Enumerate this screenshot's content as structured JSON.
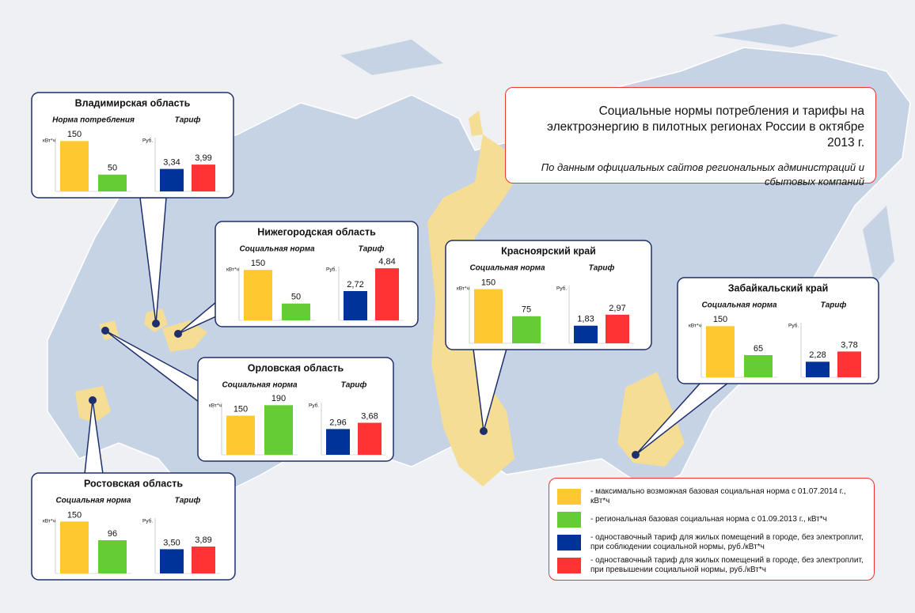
{
  "header": {
    "title": "Социальные нормы потребления и тарифы на электроэнергию в пилотных регионах России в октябре 2013 г.",
    "subtitle": "По данным официальных сайтов региональных администраций и сбытовых компаний"
  },
  "chart_data": [
    {
      "title": "Владимирская область",
      "charts": [
        {
          "type": "bar",
          "title": "Норма потребления",
          "unit": "кВт*ч",
          "values": [
            150,
            50
          ],
          "colors": [
            "#fdc92f",
            "#66cc33"
          ],
          "ylim": [
            0,
            160
          ]
        },
        {
          "type": "bar",
          "title": "Тариф",
          "unit": "Руб.",
          "values": [
            3.34,
            3.99
          ],
          "value_labels": [
            "3,34",
            "3,99"
          ],
          "colors": [
            "#003399",
            "#ff3333"
          ],
          "ylim": [
            0,
            8
          ]
        }
      ]
    },
    {
      "title": "Нижегородская область",
      "charts": [
        {
          "type": "bar",
          "title": "Социальная норма",
          "unit": "кВт*ч",
          "values": [
            150,
            50
          ],
          "colors": [
            "#fdc92f",
            "#66cc33"
          ],
          "ylim": [
            0,
            160
          ]
        },
        {
          "type": "bar",
          "title": "Тариф",
          "unit": "Руб.",
          "values": [
            2.72,
            4.84
          ],
          "value_labels": [
            "2,72",
            "4,84"
          ],
          "colors": [
            "#003399",
            "#ff3333"
          ],
          "ylim": [
            0,
            5
          ]
        }
      ]
    },
    {
      "title": "Орловская область",
      "charts": [
        {
          "type": "bar",
          "title": "Социальная норма",
          "unit": "кВт*ч",
          "values": [
            150,
            190
          ],
          "colors": [
            "#fdc92f",
            "#66cc33"
          ],
          "ylim": [
            0,
            200
          ]
        },
        {
          "type": "bar",
          "title": "Тариф",
          "unit": "Руб.",
          "values": [
            2.96,
            3.68
          ],
          "value_labels": [
            "2,96",
            "3,68"
          ],
          "colors": [
            "#003399",
            "#ff3333"
          ],
          "ylim": [
            0,
            6
          ]
        }
      ]
    },
    {
      "title": "Ростовская область",
      "charts": [
        {
          "type": "bar",
          "title": "Социальная норма",
          "unit": "кВт*ч",
          "values": [
            150,
            96
          ],
          "colors": [
            "#fdc92f",
            "#66cc33"
          ],
          "ylim": [
            0,
            160
          ]
        },
        {
          "type": "bar",
          "title": "Тариф",
          "unit": "Руб.",
          "values": [
            3.5,
            3.89
          ],
          "value_labels": [
            "3,50",
            "3,89"
          ],
          "colors": [
            "#003399",
            "#ff3333"
          ],
          "ylim": [
            0,
            8
          ]
        }
      ]
    },
    {
      "title": "Красноярский край",
      "charts": [
        {
          "type": "bar",
          "title": "Социальная норма",
          "unit": "кВт*ч",
          "values": [
            150,
            75
          ],
          "colors": [
            "#fdc92f",
            "#66cc33"
          ],
          "ylim": [
            0,
            160
          ]
        },
        {
          "type": "bar",
          "title": "Тариф",
          "unit": "Руб.",
          "values": [
            1.83,
            2.97
          ],
          "value_labels": [
            "1,83",
            "2,97"
          ],
          "colors": [
            "#003399",
            "#ff3333"
          ],
          "ylim": [
            0,
            6
          ]
        }
      ]
    },
    {
      "title": "Забайкальский край",
      "charts": [
        {
          "type": "bar",
          "title": "Социальная норма",
          "unit": "кВт*ч",
          "values": [
            150,
            65
          ],
          "colors": [
            "#fdc92f",
            "#66cc33"
          ],
          "ylim": [
            0,
            160
          ]
        },
        {
          "type": "bar",
          "title": "Тариф",
          "unit": "Руб.",
          "values": [
            2.28,
            3.78
          ],
          "value_labels": [
            "2,28",
            "3,78"
          ],
          "colors": [
            "#003399",
            "#ff3333"
          ],
          "ylim": [
            0,
            8
          ]
        }
      ]
    }
  ],
  "legend": {
    "items": [
      {
        "color": "#fdc92f",
        "label": "- максимально возможная базовая социальная норма с 01.07.2014 г., кВт*ч"
      },
      {
        "color": "#66cc33",
        "label": "- региональная базовая социальная норма с 01.09.2013 г., кВт*ч"
      },
      {
        "color": "#003399",
        "label": "- одноставочный тариф для жилых помещений в городе, без электроплит, при соблюдении социальной нормы, руб./кВт*ч"
      },
      {
        "color": "#ff3333",
        "label": "- одноставочный тариф для жилых помещений в городе, без электроплит, при превышении социальной нормы, руб./кВт*ч"
      }
    ]
  }
}
